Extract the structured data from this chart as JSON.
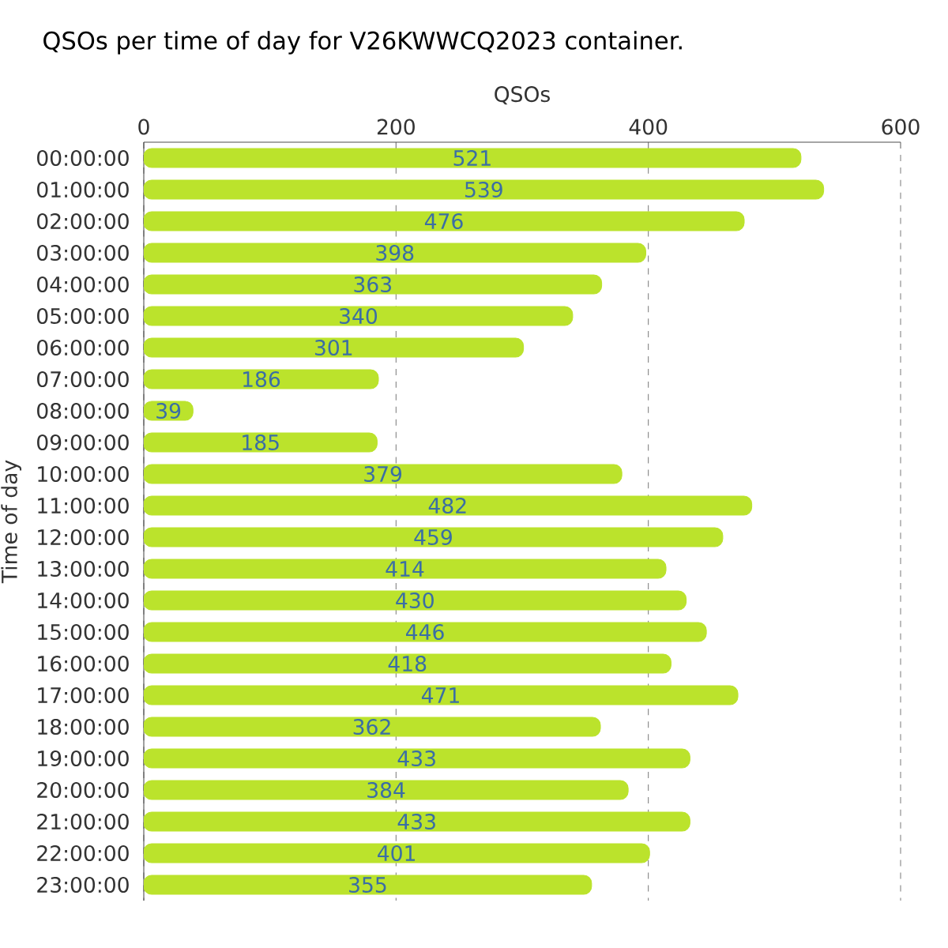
{
  "chart_data": {
    "type": "bar",
    "orientation": "horizontal",
    "title": "QSOs per time of day for V26KWWCQ2023 container.",
    "xlabel": "QSOs",
    "ylabel": "Time of day",
    "categories": [
      "00:00:00",
      "01:00:00",
      "02:00:00",
      "03:00:00",
      "04:00:00",
      "05:00:00",
      "06:00:00",
      "07:00:00",
      "08:00:00",
      "09:00:00",
      "10:00:00",
      "11:00:00",
      "12:00:00",
      "13:00:00",
      "14:00:00",
      "15:00:00",
      "16:00:00",
      "17:00:00",
      "18:00:00",
      "19:00:00",
      "20:00:00",
      "21:00:00",
      "22:00:00",
      "23:00:00"
    ],
    "values": [
      521,
      539,
      476,
      398,
      363,
      340,
      301,
      186,
      39,
      185,
      379,
      482,
      459,
      414,
      430,
      446,
      418,
      471,
      362,
      433,
      384,
      433,
      401,
      355
    ],
    "color": "#bbe32c",
    "xlim": [
      0,
      600
    ],
    "xticks": [
      0,
      200,
      400,
      600
    ],
    "grid": "x",
    "data_labels": true
  }
}
